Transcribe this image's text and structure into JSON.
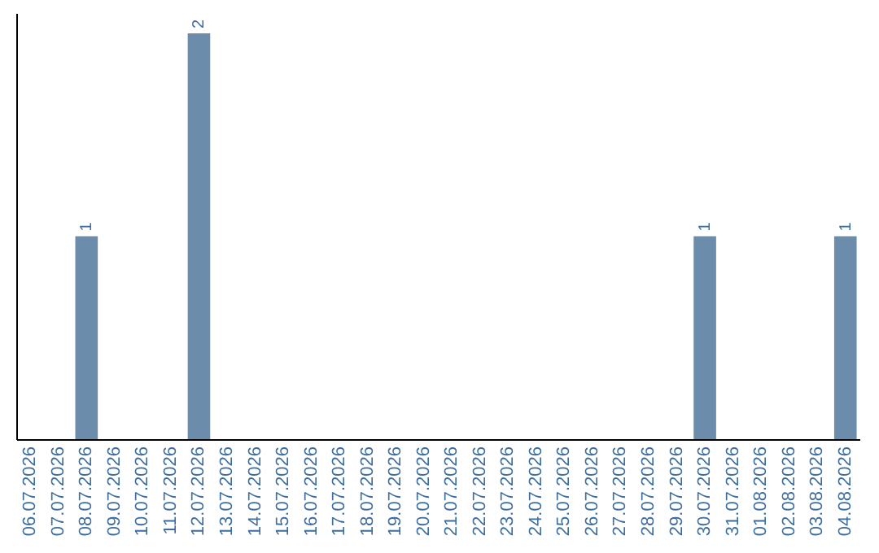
{
  "chart_data": {
    "type": "bar",
    "categories": [
      "06.07.2026",
      "07.07.2026",
      "08.07.2026",
      "09.07.2026",
      "10.07.2026",
      "11.07.2026",
      "12.07.2026",
      "13.07.2026",
      "14.07.2026",
      "15.07.2026",
      "16.07.2026",
      "17.07.2026",
      "18.07.2026",
      "19.07.2026",
      "20.07.2026",
      "21.07.2026",
      "22.07.2026",
      "23.07.2026",
      "24.07.2026",
      "25.07.2026",
      "26.07.2026",
      "27.07.2026",
      "28.07.2026",
      "29.07.2026",
      "30.07.2026",
      "31.07.2026",
      "01.08.2026",
      "02.08.2026",
      "03.08.2026",
      "04.08.2026"
    ],
    "values": [
      0,
      0,
      1,
      0,
      0,
      0,
      2,
      0,
      0,
      0,
      0,
      0,
      0,
      0,
      0,
      0,
      0,
      0,
      0,
      0,
      0,
      0,
      0,
      0,
      1,
      0,
      0,
      0,
      0,
      1
    ],
    "value_labels": [
      null,
      null,
      "1",
      null,
      null,
      null,
      "2",
      null,
      null,
      null,
      null,
      null,
      null,
      null,
      null,
      null,
      null,
      null,
      null,
      null,
      null,
      null,
      null,
      null,
      "1",
      null,
      null,
      null,
      null,
      "1"
    ],
    "color": "#6b8caa",
    "tick_labels": "x",
    "grid": false
  }
}
